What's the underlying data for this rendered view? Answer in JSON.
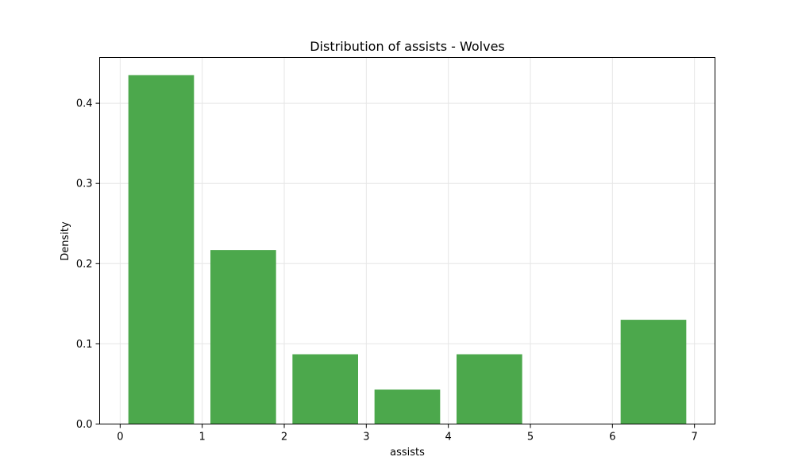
{
  "chart_data": {
    "type": "bar",
    "title": "Distribution of assists - Wolves",
    "xlabel": "assists",
    "ylabel": "Density",
    "bins": [
      {
        "x0": 0,
        "x1": 1,
        "value": 0.435
      },
      {
        "x0": 1,
        "x1": 2,
        "value": 0.217
      },
      {
        "x0": 2,
        "x1": 3,
        "value": 0.087
      },
      {
        "x0": 3,
        "x1": 4,
        "value": 0.043
      },
      {
        "x0": 4,
        "x1": 5,
        "value": 0.087
      },
      {
        "x0": 5,
        "x1": 6,
        "value": 0.0
      },
      {
        "x0": 6,
        "x1": 7,
        "value": 0.13
      }
    ],
    "xlim": [
      -0.25,
      7.25
    ],
    "ylim": [
      0,
      0.457
    ],
    "xticks": [
      0,
      1,
      2,
      3,
      4,
      5,
      6,
      7
    ],
    "xtick_labels": [
      "0",
      "1",
      "2",
      "3",
      "4",
      "5",
      "6",
      "7"
    ],
    "yticks": [
      0.0,
      0.1,
      0.2,
      0.3,
      0.4
    ],
    "ytick_labels": [
      "0.0",
      "0.1",
      "0.2",
      "0.3",
      "0.4"
    ],
    "grid": true,
    "bar_color": "#4ca84c",
    "grid_color": "#e6e6e6"
  }
}
